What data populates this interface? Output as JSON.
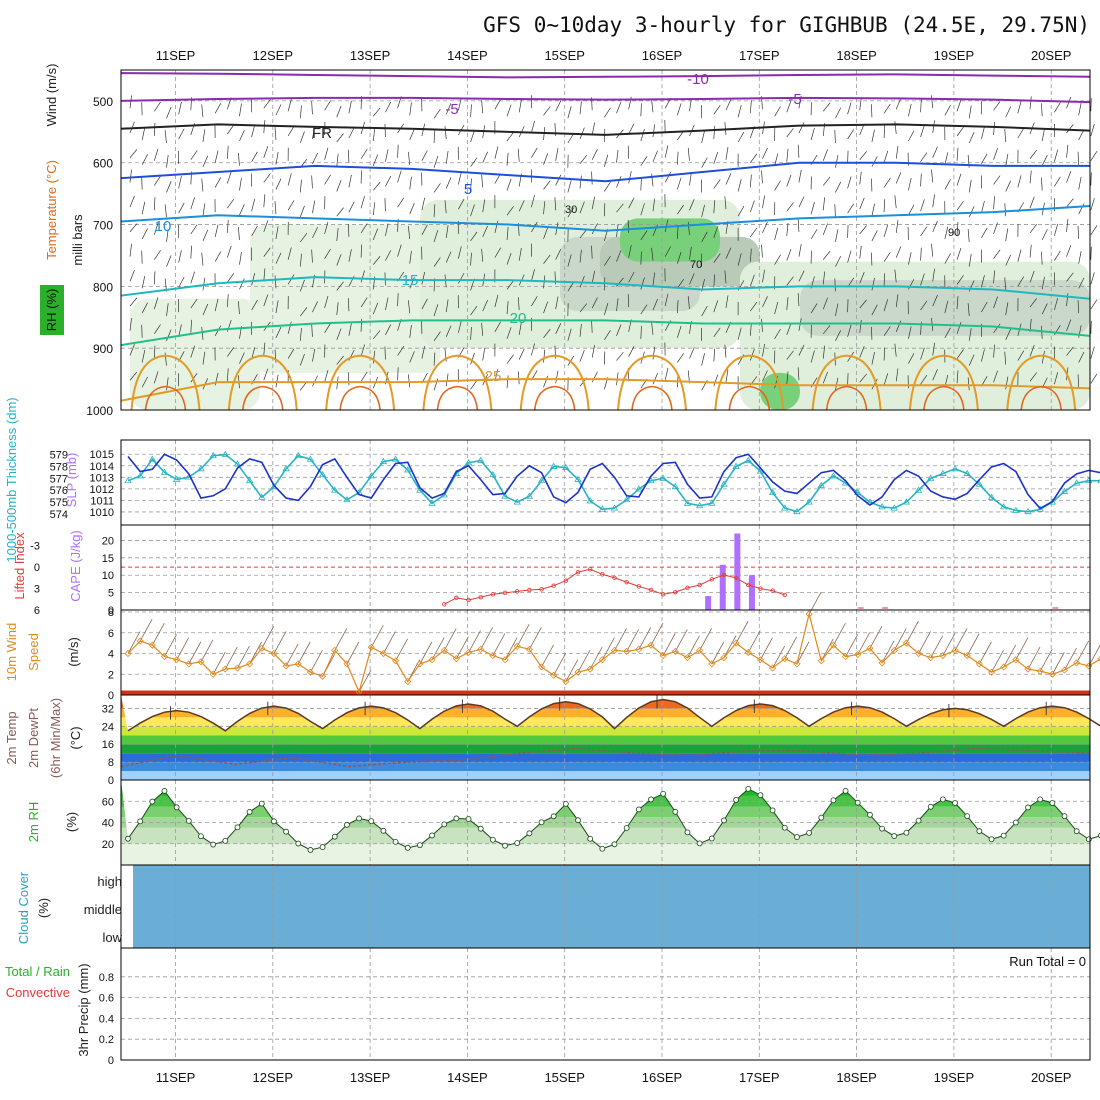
{
  "title": "GFS 0~10day 3-hourly for GIGHBUB (24.5E, 29.75N)",
  "dates": [
    "11SEP",
    "12SEP",
    "13SEP",
    "14SEP",
    "15SEP",
    "16SEP",
    "17SEP",
    "18SEP",
    "19SEP",
    "20SEP"
  ],
  "colors": {
    "cape": "#b070ff",
    "lifted": "#e33a3a",
    "slp": "#1a33c8",
    "thickness": "#27b3c3",
    "wind10": "#e08a1e",
    "temp": "#5a3a20",
    "dewpt": "#8a5a5a",
    "rh": "#2ab02a",
    "cloud": "#6aaed6"
  },
  "chart_data": [
    {
      "panel": "upper-air",
      "type": "contour",
      "ylabel": "milli bars",
      "side_labels": [
        "Wind (m/s)",
        "Temperature (°C)",
        "RH (%)"
      ],
      "y_axis": {
        "ticks": [
          500,
          600,
          700,
          800,
          900,
          1000
        ],
        "range": [
          450,
          1000
        ]
      },
      "isotherm_labels": [
        "-10",
        "-5",
        "FR",
        "-5",
        "5",
        "10",
        "15",
        "20",
        "25"
      ],
      "rh_labels": [
        "30",
        "70",
        "90"
      ],
      "isotherms": [
        {
          "label": "-10",
          "p": [
            455,
            456,
            458,
            460,
            462,
            461,
            460,
            458,
            457,
            459,
            461
          ]
        },
        {
          "label": "-5",
          "p": [
            500,
            497,
            495,
            495,
            497,
            498,
            497,
            495,
            496,
            498,
            502
          ]
        },
        {
          "label": "FR",
          "p": [
            545,
            538,
            542,
            545,
            550,
            555,
            548,
            540,
            538,
            542,
            548
          ]
        },
        {
          "label": "5",
          "p": [
            625,
            615,
            605,
            610,
            620,
            630,
            615,
            600,
            600,
            605,
            605
          ]
        },
        {
          "label": "10",
          "p": [
            695,
            685,
            690,
            695,
            700,
            710,
            700,
            690,
            685,
            680,
            670
          ]
        },
        {
          "label": "15",
          "p": [
            815,
            795,
            785,
            790,
            790,
            795,
            805,
            800,
            800,
            805,
            820
          ]
        },
        {
          "label": "20",
          "p": [
            895,
            870,
            860,
            855,
            855,
            855,
            860,
            860,
            860,
            865,
            880
          ]
        },
        {
          "label": "25",
          "p": [
            985,
            955,
            955,
            955,
            950,
            950,
            955,
            960,
            960,
            960,
            965
          ]
        }
      ]
    },
    {
      "panel": "slp-thickness",
      "type": "line",
      "ylabel_left": "1000-500mb Thickness (dm)",
      "ylabel_right": "SLP (mb)",
      "left_ticks": [
        "579",
        "578",
        "577",
        "576",
        "575",
        "574"
      ],
      "right_ticks": [
        "1015",
        "1014",
        "1013",
        "1012",
        "1011",
        "1010"
      ],
      "left_range": [
        573.5,
        579.8
      ],
      "right_range": [
        1009.3,
        1015.8
      ],
      "series": [
        {
          "axis": "left",
          "values": [
            576.8,
            577.2,
            578.6,
            577.5,
            576.9,
            577.1,
            577.8,
            578.9,
            579.0,
            578.2,
            576.8,
            575.4,
            576.3,
            577.8,
            578.9,
            578.6,
            577.3,
            576.0,
            575.2,
            575.8,
            577.2,
            578.4,
            578.6,
            577.7,
            576.0,
            574.9,
            575.6,
            577.4,
            578.3,
            578.5,
            577.3,
            575.5,
            575.0,
            575.5,
            576.8,
            578.0,
            577.9,
            576.9,
            575.1,
            574.4,
            574.5,
            575.2,
            576.1,
            576.8,
            577.0,
            576.3,
            574.9,
            574.7,
            574.9,
            576.5,
            578.0,
            578.5,
            577.6,
            575.8,
            574.5,
            574.2,
            575.0,
            576.4,
            577.2,
            576.6,
            575.8,
            575.0,
            574.6,
            574.5,
            575.0,
            576.0,
            577.0,
            577.4,
            577.8,
            577.4,
            576.5,
            575.4,
            574.6,
            574.3,
            574.2,
            574.4,
            575.0,
            575.9,
            576.6,
            576.8,
            576.8,
            577.6,
            578.7,
            578.7,
            578.2,
            577.8,
            577.0
          ]
        },
        {
          "axis": "right",
          "values": [
            1014.8,
            1013.5,
            1013.7,
            1015.0,
            1014.5,
            1013.3,
            1011.2,
            1011.4,
            1012.0,
            1013.8,
            1014.6,
            1014.3,
            1012.3,
            1011.2,
            1011.0,
            1012.2,
            1014.1,
            1014.6,
            1013.0,
            1011.5,
            1011.2,
            1012.8,
            1014.2,
            1014.3,
            1012.1,
            1011.2,
            1011.6,
            1013.5,
            1014.0,
            1012.8,
            1011.5,
            1011.6,
            1013.1,
            1014.0,
            1013.4,
            1011.3,
            1010.8,
            1011.7,
            1013.7,
            1014.2,
            1013.0,
            1011.4,
            1011.3,
            1013.1,
            1014.2,
            1014.3,
            1012.4,
            1011.2,
            1011.3,
            1013.5,
            1014.7,
            1015.0,
            1013.8,
            1012.6,
            1011.8,
            1011.6,
            1012.5,
            1013.4,
            1013.6,
            1012.7,
            1011.4,
            1010.6,
            1011.3,
            1012.8,
            1013.6,
            1013.1,
            1011.8,
            1011.3,
            1011.1,
            1011.6,
            1012.8,
            1013.9,
            1014.2,
            1013.5,
            1011.5,
            1010.3,
            1010.9,
            1012.5,
            1013.3,
            1013.6,
            1013.4,
            1012.0,
            1011.4,
            1012.6,
            1014.0,
            1014.5,
            1014.9
          ]
        }
      ]
    },
    {
      "panel": "cape-li",
      "type": "bar",
      "ylabel_left": "Lifted Index",
      "ylabel_right": "CAPE (J/kg)",
      "left_ticks": [
        "-3",
        "0",
        "3",
        "6"
      ],
      "right_ticks": [
        "20",
        "15",
        "10",
        "5",
        "0"
      ],
      "cape": {
        "x": [
          47.7,
          48.9,
          50.1,
          51.3
        ],
        "values": [
          4,
          13,
          22,
          10
        ]
      },
      "lifted_index": {
        "x": [
          26,
          27,
          28,
          29,
          30,
          31,
          32,
          33,
          34,
          35,
          36,
          37,
          38,
          39,
          40,
          41,
          42,
          43,
          44,
          45,
          46,
          47,
          48,
          49,
          50,
          51,
          52,
          53,
          54
        ],
        "values": [
          5.2,
          4.3,
          4.6,
          4.2,
          3.8,
          3.6,
          3.4,
          3.2,
          3.1,
          2.6,
          1.9,
          0.7,
          0.3,
          1.0,
          1.5,
          2.1,
          2.7,
          3.2,
          3.8,
          3.5,
          2.9,
          2.5,
          1.7,
          1.1,
          1.5,
          2.5,
          3.0,
          3.3,
          3.9
        ]
      },
      "zero_line": 0
    },
    {
      "panel": "wind10m",
      "type": "line",
      "ylabel": "10m Wind Speed & Barbs (m/s)",
      "ticks": [
        "8",
        "6",
        "4",
        "2",
        "0"
      ],
      "range": [
        0,
        8
      ],
      "values": [
        4.0,
        5.2,
        4.8,
        3.7,
        3.4,
        3.0,
        3.2,
        2.0,
        2.5,
        2.6,
        3.0,
        4.5,
        4.0,
        2.8,
        3.0,
        2.2,
        1.8,
        4.3,
        3.0,
        0.3,
        4.6,
        4.0,
        3.3,
        1.3,
        3.0,
        3.4,
        4.3,
        3.5,
        4.1,
        4.4,
        3.8,
        3.4,
        4.7,
        4.4,
        2.7,
        1.9,
        1.3,
        2.2,
        2.5,
        3.4,
        4.3,
        4.2,
        4.4,
        4.8,
        3.8,
        4.2,
        3.6,
        4.3,
        3.0,
        3.6,
        5.0,
        4.1,
        3.4,
        2.6,
        3.5,
        3.0,
        7.8,
        3.3,
        4.8,
        3.7,
        3.9,
        4.5,
        3.1,
        4.3,
        5.0,
        4.0,
        3.6,
        3.8,
        4.3,
        3.8,
        3.0,
        2.2,
        2.7,
        3.4,
        2.5,
        2.3,
        2.0,
        2.4,
        3.1,
        2.8,
        3.5,
        4.4,
        3.2,
        2.2,
        3.5,
        5.0,
        3.3,
        3.1,
        2.8
      ]
    },
    {
      "panel": "temp-dewpt",
      "type": "area",
      "ylabel": "2m Temp 2m DewPt (6hr Min/Max) (°C)",
      "ticks": [
        "32",
        "24",
        "16",
        "8",
        "0"
      ],
      "range": [
        0,
        38
      ],
      "temp_min": [
        22,
        22,
        23,
        23,
        24,
        23,
        24,
        24,
        24,
        24
      ],
      "temp_max": [
        31,
        33,
        33,
        34,
        35,
        36,
        34,
        33,
        32,
        33
      ],
      "dewpoint": [
        6,
        11,
        7,
        10,
        6,
        8,
        9,
        12,
        14,
        12,
        11,
        13,
        13,
        11,
        12,
        14,
        13,
        12
      ]
    },
    {
      "panel": "rh2m",
      "type": "area",
      "ylabel": "2m RH (%)",
      "ticks": [
        "60",
        "40",
        "20"
      ],
      "range": [
        0,
        80
      ],
      "maxima": [
        70,
        58,
        44,
        44,
        46,
        62,
        72,
        70,
        62,
        62
      ],
      "minima": [
        20,
        19,
        14,
        16,
        18,
        15,
        20,
        26,
        27,
        24
      ]
    },
    {
      "panel": "cloud",
      "type": "heatmap",
      "ylabel": "Cloud Cover (%)",
      "rows": [
        "high",
        "middle",
        "low"
      ]
    },
    {
      "panel": "precip",
      "type": "bar",
      "ylabel": "3hr Precip (mm)",
      "side_labels": [
        "Total / Rain",
        "Convective"
      ],
      "ticks": [
        "0.8",
        "0.6",
        "0.4",
        "0.2",
        "0"
      ],
      "range": [
        0,
        1
      ],
      "values": [],
      "run_total": "Run Total = 0"
    }
  ]
}
